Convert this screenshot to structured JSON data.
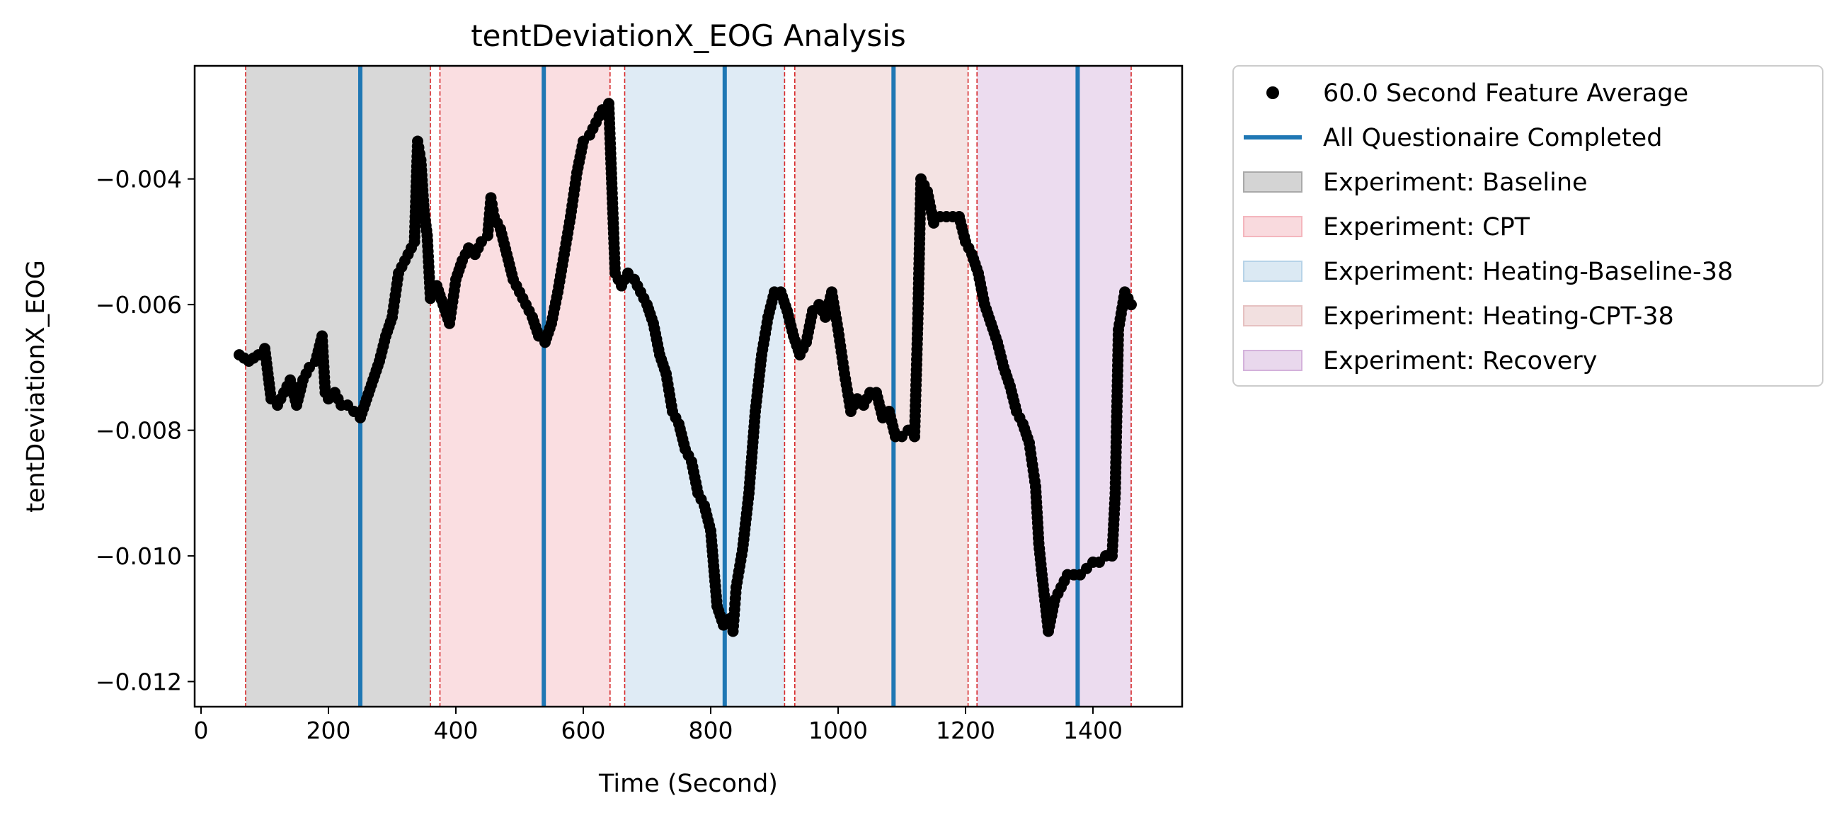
{
  "chart_data": {
    "type": "scatter",
    "title": "tentDeviationX_EOG Analysis",
    "xlabel": "Time (Second)",
    "ylabel": "tentDeviationX_EOG",
    "xlim": [
      -10,
      1540
    ],
    "ylim": [
      -0.0124,
      -0.0022
    ],
    "xticks": [
      0,
      200,
      400,
      600,
      800,
      1000,
      1200,
      1400
    ],
    "xtick_labels": [
      "0",
      "200",
      "400",
      "600",
      "800",
      "1000",
      "1200",
      "1400"
    ],
    "yticks": [
      -0.004,
      -0.006,
      -0.008,
      -0.01,
      -0.012
    ],
    "ytick_labels": [
      "−0.004",
      "−0.006",
      "−0.008",
      "−0.010",
      "−0.012"
    ],
    "grid": false,
    "legend_placement": "outside-top-right",
    "experiment_spans": [
      {
        "name": "Experiment: Baseline",
        "start": 70,
        "end": 360,
        "color": "#a9a9a9"
      },
      {
        "name": "Experiment: CPT",
        "start": 375,
        "end": 642,
        "color": "#f4b6bd"
      },
      {
        "name": "Experiment: Heating-Baseline-38",
        "start": 665,
        "end": 916,
        "color": "#b7d3e8"
      },
      {
        "name": "Experiment: Heating-CPT-38",
        "start": 932,
        "end": 1204,
        "color": "#e6c1c1"
      },
      {
        "name": "Experiment: Recovery",
        "start": 1218,
        "end": 1460,
        "color": "#d4b2db"
      }
    ],
    "boundary_lines": [
      70,
      360,
      375,
      642,
      665,
      916,
      932,
      1204,
      1218,
      1460
    ],
    "questionnaire_lines": [
      250,
      538,
      822,
      1087,
      1376
    ],
    "series": [
      {
        "name": "60.0 Second Feature Average",
        "marker": "dot",
        "color": "#000000",
        "x": [
          60,
          75,
          90,
          100,
          110,
          120,
          130,
          140,
          150,
          160,
          170,
          180,
          190,
          195,
          200,
          210,
          220,
          230,
          240,
          250,
          260,
          270,
          280,
          290,
          300,
          310,
          320,
          330,
          335,
          340,
          345,
          350,
          355,
          360,
          370,
          380,
          390,
          400,
          410,
          420,
          430,
          440,
          450,
          455,
          460,
          470,
          480,
          490,
          500,
          510,
          520,
          530,
          540,
          550,
          560,
          570,
          580,
          590,
          600,
          610,
          620,
          630,
          640,
          650,
          660,
          670,
          680,
          690,
          700,
          710,
          720,
          730,
          740,
          750,
          760,
          770,
          780,
          790,
          800,
          810,
          820,
          830,
          835,
          840,
          850,
          860,
          870,
          880,
          890,
          900,
          910,
          920,
          930,
          940,
          950,
          960,
          970,
          980,
          990,
          1000,
          1010,
          1020,
          1030,
          1040,
          1050,
          1060,
          1070,
          1080,
          1090,
          1100,
          1110,
          1120,
          1125,
          1130,
          1140,
          1150,
          1160,
          1170,
          1180,
          1190,
          1200,
          1210,
          1220,
          1230,
          1240,
          1250,
          1260,
          1270,
          1280,
          1290,
          1300,
          1310,
          1315,
          1320,
          1330,
          1340,
          1350,
          1360,
          1370,
          1380,
          1390,
          1400,
          1410,
          1420,
          1430,
          1435,
          1440,
          1450,
          1460
        ],
        "y": [
          -0.0068,
          -0.0069,
          -0.0068,
          -0.0067,
          -0.0075,
          -0.0076,
          -0.0074,
          -0.0072,
          -0.0076,
          -0.0072,
          -0.007,
          -0.0069,
          -0.0065,
          -0.0074,
          -0.0075,
          -0.0074,
          -0.0076,
          -0.0076,
          -0.0077,
          -0.0078,
          -0.0075,
          -0.0072,
          -0.0069,
          -0.0065,
          -0.0062,
          -0.0055,
          -0.0053,
          -0.0051,
          -0.005,
          -0.0034,
          -0.0037,
          -0.0045,
          -0.0049,
          -0.0059,
          -0.0057,
          -0.006,
          -0.0063,
          -0.0056,
          -0.0053,
          -0.0051,
          -0.0052,
          -0.005,
          -0.0049,
          -0.0043,
          -0.0046,
          -0.0048,
          -0.0052,
          -0.0056,
          -0.0058,
          -0.006,
          -0.0062,
          -0.0065,
          -0.0066,
          -0.0063,
          -0.0058,
          -0.0052,
          -0.0046,
          -0.0039,
          -0.0034,
          -0.0033,
          -0.0031,
          -0.0029,
          -0.0028,
          -0.0055,
          -0.0057,
          -0.0055,
          -0.0056,
          -0.0058,
          -0.006,
          -0.0063,
          -0.0068,
          -0.0071,
          -0.0077,
          -0.0079,
          -0.0083,
          -0.0085,
          -0.009,
          -0.0092,
          -0.0096,
          -0.0108,
          -0.0111,
          -0.011,
          -0.0112,
          -0.0105,
          -0.0099,
          -0.009,
          -0.0077,
          -0.0068,
          -0.0062,
          -0.0058,
          -0.0058,
          -0.0061,
          -0.0065,
          -0.0068,
          -0.0066,
          -0.0061,
          -0.006,
          -0.0062,
          -0.0058,
          -0.0064,
          -0.0071,
          -0.0077,
          -0.0075,
          -0.0076,
          -0.0074,
          -0.0074,
          -0.0078,
          -0.0077,
          -0.0081,
          -0.0081,
          -0.008,
          -0.0081,
          -0.0063,
          -0.004,
          -0.0042,
          -0.0047,
          -0.0046,
          -0.0046,
          -0.0046,
          -0.0046,
          -0.005,
          -0.0052,
          -0.0055,
          -0.006,
          -0.0063,
          -0.0066,
          -0.007,
          -0.0073,
          -0.0077,
          -0.0079,
          -0.0082,
          -0.0089,
          -0.0098,
          -0.0103,
          -0.0112,
          -0.0107,
          -0.0105,
          -0.0103,
          -0.0103,
          -0.0103,
          -0.0102,
          -0.0101,
          -0.0101,
          -0.01,
          -0.01,
          -0.009,
          -0.0064,
          -0.0058,
          -0.006
        ]
      }
    ]
  },
  "legend": {
    "items": [
      {
        "label": "60.0 Second Feature Average",
        "kind": "dot",
        "color": "#000000"
      },
      {
        "label": "All Questionaire Completed",
        "kind": "line",
        "color": "#1f77b4"
      },
      {
        "label": "Experiment: Baseline",
        "kind": "patch",
        "color": "#a9a9a9"
      },
      {
        "label": "Experiment: CPT",
        "kind": "patch",
        "color": "#f4b6bd"
      },
      {
        "label": "Experiment: Heating-Baseline-38",
        "kind": "patch",
        "color": "#b7d3e8"
      },
      {
        "label": "Experiment: Heating-CPT-38",
        "kind": "patch",
        "color": "#e6c1c1"
      },
      {
        "label": "Experiment: Recovery",
        "kind": "patch",
        "color": "#d4b2db"
      }
    ]
  },
  "colors": {
    "questionnaire_line": "#1f77b4",
    "boundary_line": "#d62728",
    "axes": "#000000"
  }
}
